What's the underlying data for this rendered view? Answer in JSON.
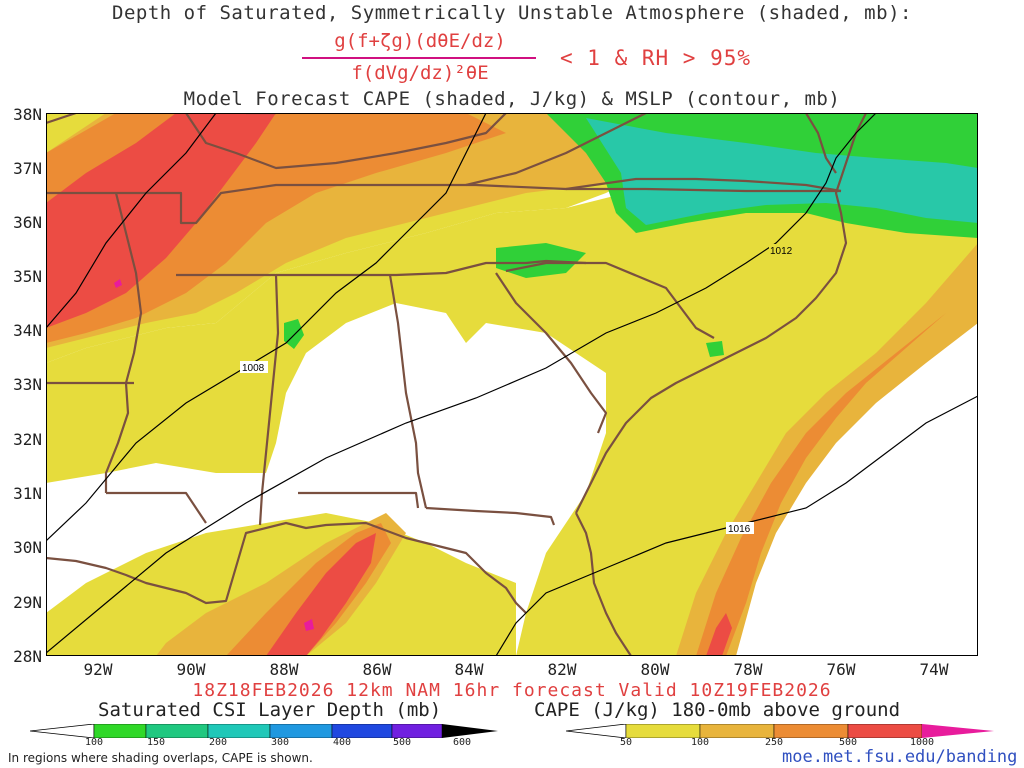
{
  "header": {
    "title_line1": "Depth of Saturated, Symmetrically Unstable Atmosphere (shaded, mb):",
    "fraction_numerator": "g(f+ζg)(dθE/dz)",
    "fraction_denominator": "f(dVg/dz)²θE",
    "condition": "< 1 & RH > 95%",
    "title_line3": "Model Forecast CAPE (shaded, J/kg) & MSLP (contour, mb)"
  },
  "map": {
    "lat_labels": [
      "38N",
      "37N",
      "36N",
      "35N",
      "34N",
      "33N",
      "32N",
      "31N",
      "30N",
      "29N",
      "28N"
    ],
    "lon_labels": [
      "92W",
      "90W",
      "88W",
      "86W",
      "84W",
      "82W",
      "80W",
      "78W",
      "76W",
      "74W"
    ],
    "isobar_labels": [
      "1008",
      "1012",
      "1016"
    ],
    "colors": {
      "border": "#7a5040",
      "isobar": "#000000",
      "cape_50": "#e6dc3c",
      "cape_100": "#e8b43c",
      "cape_250": "#ec8c34",
      "cape_500": "#ec4c44",
      "cape_1000": "#e81c9c",
      "csi_150": "#30d038",
      "csi_200": "#28c8a8"
    }
  },
  "footer": {
    "valid_line": "18Z18FEB2026 12km NAM 16hr forecast Valid 10Z19FEB2026",
    "legend_left_title": "Saturated CSI Layer Depth (mb)",
    "legend_left_ticks": [
      "100",
      "150",
      "200",
      "300",
      "400",
      "500",
      "600"
    ],
    "legend_left_colors": [
      "#30d828",
      "#20c880",
      "#20c8b8",
      "#2098e0",
      "#2048e0",
      "#6020e0",
      "#9018d0"
    ],
    "legend_right_title": "CAPE (J/kg) 180-0mb above ground",
    "legend_right_ticks": [
      "50",
      "100",
      "250",
      "500",
      "1000"
    ],
    "legend_right_colors": [
      "#e6dc3c",
      "#e8b43c",
      "#ec8c34",
      "#ec4c44",
      "#e81c9c"
    ],
    "note": "In regions where shading overlaps, CAPE is shown.",
    "url": "moe.met.fsu.edu/banding"
  }
}
